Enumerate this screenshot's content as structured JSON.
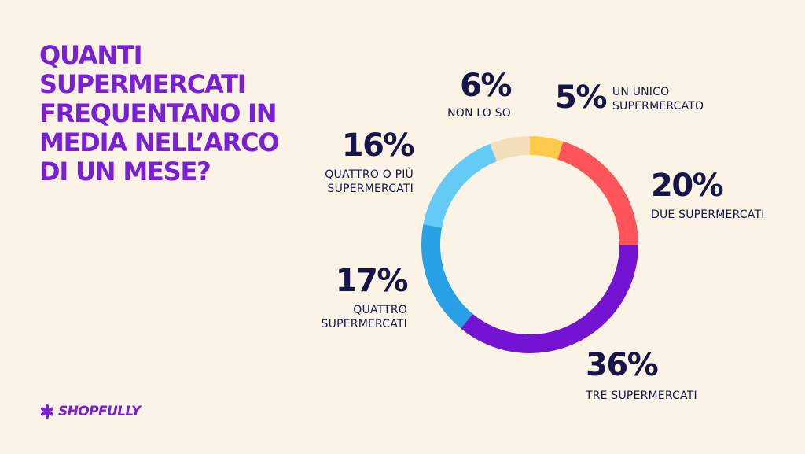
{
  "title": "Quanti supermercati frequentano in media nell’arco di un mese?",
  "brand": {
    "name": "SHOPFULLY",
    "icon": "asterisk-logo-icon",
    "color": "#7A1FD6"
  },
  "chart_data": {
    "type": "pie",
    "donut": true,
    "title": "Quanti supermercati frequentano in media nell’arco di un mese?",
    "slices": [
      {
        "label": "UN UNICO SUPERMERCATO",
        "value": 5,
        "value_label": "5%",
        "color": "#FFC94A"
      },
      {
        "label": "DUE SUPERMERCATI",
        "value": 20,
        "value_label": "20%",
        "color": "#FF5459"
      },
      {
        "label": "TRE SUPERMERCATI",
        "value": 36,
        "value_label": "36%",
        "color": "#7413D1"
      },
      {
        "label": "QUATTRO SUPERMERCATI",
        "value": 17,
        "value_label": "17%",
        "color": "#27A0E6"
      },
      {
        "label": "QUATTRO O PIÙ SUPERMERCATI",
        "value": 16,
        "value_label": "16%",
        "color": "#63CBF5"
      },
      {
        "label": "NON LO SO",
        "value": 6,
        "value_label": "6%",
        "color": "#F4DFBD"
      }
    ],
    "legend": "none"
  }
}
